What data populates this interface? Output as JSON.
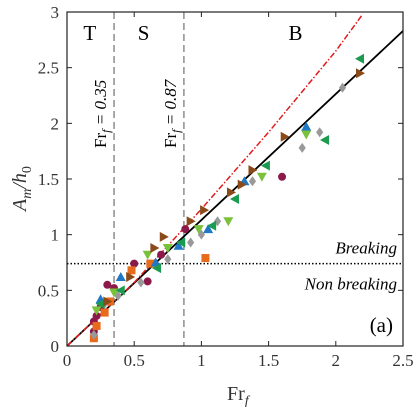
{
  "chart_data": {
    "type": "scatter",
    "xlabel_main": "Fr",
    "xlabel_sub": "f",
    "ylabel_main": "A",
    "ylabel_sub": "m",
    "ylabel_rest": "/h",
    "ylabel_sub2": "0",
    "xlim": [
      0,
      2.5
    ],
    "ylim": [
      0,
      3
    ],
    "x_ticks": [
      "0",
      "0.5",
      "1",
      "1.5",
      "2",
      "2.5"
    ],
    "y_ticks": [
      "0",
      "0.5",
      "1",
      "1.5",
      "2",
      "2.5",
      "3"
    ],
    "panel_label": "(a)",
    "regions": [
      {
        "label": "T",
        "x": 0.17
      },
      {
        "label": "S",
        "x": 0.57
      },
      {
        "label": "B",
        "x": 1.7
      }
    ],
    "vlines": [
      {
        "x": 0.35,
        "label_main": "Fr",
        "label_sub": "f",
        "label_rest": " = 0.35"
      },
      {
        "x": 0.87,
        "label_main": "Fr",
        "label_sub": "f",
        "label_rest": " = 0.87"
      }
    ],
    "hline": {
      "y": 0.74,
      "label_above": "Breaking",
      "label_below": "Non breaking"
    },
    "fit_line": {
      "x": [
        0,
        2.5
      ],
      "y": [
        0,
        2.83
      ],
      "color": "#000000"
    },
    "dashdot_line": {
      "x": [
        0,
        0.5,
        1.0,
        1.5,
        2.0,
        2.2
      ],
      "y": [
        0,
        0.57,
        1.23,
        1.92,
        2.65,
        2.98
      ],
      "color": "#e31a1c"
    },
    "series": [
      {
        "marker": "circle",
        "color": "#8b1a4a",
        "points": [
          [
            0.2,
            0.22
          ],
          [
            0.2,
            0.13
          ],
          [
            0.22,
            0.27
          ],
          [
            0.25,
            0.35
          ],
          [
            0.3,
            0.55
          ],
          [
            0.35,
            0.52
          ],
          [
            0.5,
            0.74
          ],
          [
            0.6,
            0.58
          ],
          [
            0.7,
            0.82
          ],
          [
            0.88,
            1.05
          ],
          [
            1.6,
            1.52
          ]
        ]
      },
      {
        "marker": "square",
        "color": "#e86a1a",
        "points": [
          [
            0.2,
            0.07
          ],
          [
            0.22,
            0.18
          ],
          [
            0.28,
            0.3
          ],
          [
            0.32,
            0.4
          ],
          [
            0.48,
            0.68
          ],
          [
            0.62,
            0.74
          ],
          [
            1.03,
            0.79
          ]
        ]
      },
      {
        "marker": "diamond",
        "color": "#999999",
        "points": [
          [
            0.2,
            0.1
          ],
          [
            0.28,
            0.38
          ],
          [
            0.38,
            0.45
          ],
          [
            0.55,
            0.57
          ],
          [
            0.75,
            0.78
          ],
          [
            0.92,
            0.93
          ],
          [
            1.0,
            1.0
          ],
          [
            1.12,
            1.12
          ],
          [
            1.38,
            1.48
          ],
          [
            1.75,
            1.78
          ],
          [
            1.88,
            1.92
          ],
          [
            2.05,
            2.32
          ]
        ]
      },
      {
        "marker": "triangle-up",
        "color": "#1f78c4",
        "points": [
          [
            0.25,
            0.42
          ],
          [
            0.4,
            0.62
          ],
          [
            0.66,
            0.75
          ],
          [
            0.83,
            0.9
          ],
          [
            1.05,
            1.05
          ],
          [
            1.32,
            1.48
          ],
          [
            1.78,
            1.97
          ]
        ]
      },
      {
        "marker": "triangle-down",
        "color": "#7ac23c",
        "points": [
          [
            0.22,
            0.32
          ],
          [
            0.35,
            0.48
          ],
          [
            0.6,
            0.82
          ],
          [
            0.75,
            0.88
          ],
          [
            0.98,
            1.05
          ],
          [
            1.2,
            1.12
          ],
          [
            1.45,
            1.52
          ],
          [
            1.78,
            1.9
          ]
        ]
      },
      {
        "marker": "triangle-left",
        "color": "#1a9b50",
        "points": [
          [
            0.25,
            0.38
          ],
          [
            0.4,
            0.5
          ],
          [
            0.67,
            0.7
          ],
          [
            0.85,
            0.93
          ],
          [
            1.08,
            1.08
          ],
          [
            1.25,
            1.32
          ],
          [
            1.48,
            1.62
          ],
          [
            1.92,
            1.85
          ],
          [
            2.18,
            2.58
          ]
        ]
      },
      {
        "marker": "triangle-right",
        "color": "#8b4a1a",
        "points": [
          [
            0.3,
            0.4
          ],
          [
            0.47,
            0.62
          ],
          [
            0.65,
            0.88
          ],
          [
            0.72,
            0.98
          ],
          [
            0.92,
            1.12
          ],
          [
            1.02,
            1.22
          ],
          [
            1.22,
            1.38
          ],
          [
            1.3,
            1.45
          ],
          [
            1.38,
            1.58
          ],
          [
            1.62,
            1.88
          ],
          [
            2.18,
            2.45
          ]
        ]
      }
    ]
  }
}
